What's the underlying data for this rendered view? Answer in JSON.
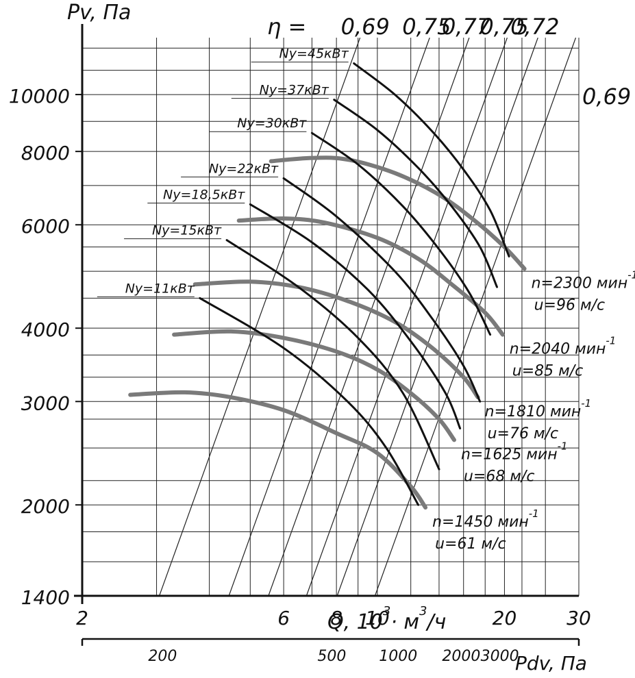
{
  "chart_data": {
    "type": "line",
    "y_axis": {
      "label": "Pv, Па",
      "scale": "log",
      "range": [
        1400,
        12500
      ],
      "ticks": [
        1400,
        2000,
        3000,
        4000,
        6000,
        8000,
        10000
      ],
      "grid": [
        1400,
        1600,
        1800,
        2000,
        2200,
        2500,
        2800,
        3000,
        3300,
        3600,
        4000,
        4500,
        5000,
        5500,
        6000,
        7000,
        8000,
        9000,
        10000,
        11000,
        12000
      ]
    },
    "x_axis": {
      "label_q": "Q, 10",
      "label_exp": "3",
      "label_mid": "· м",
      "label_exp2": "3",
      "label_end": "/ч",
      "scale": "log",
      "range": [
        2,
        30
      ],
      "ticks": [
        2,
        6,
        8,
        10,
        20,
        30
      ],
      "grid": [
        2,
        3,
        4,
        5,
        6,
        7,
        8,
        9,
        10,
        12,
        14,
        16,
        18,
        20,
        22,
        25,
        30
      ]
    },
    "pdv_axis": {
      "label": "Pdv, Па",
      "ticks": [
        200,
        500,
        1000,
        2000,
        3000
      ],
      "tick_q": [
        3.1,
        7.8,
        11.2,
        15.8,
        19.5
      ]
    },
    "eta_label": "η =",
    "efficiency_lines": [
      {
        "label": "0,69",
        "q_top": 9.1
      },
      {
        "label": "0,75",
        "q_top": 13.3
      },
      {
        "label": "0,77",
        "q_top": 16.5
      },
      {
        "label": "0,75",
        "q_top": 20.3
      },
      {
        "label": "0,72",
        "q_top": 24.0
      },
      {
        "label": "0,69",
        "q_top": 29.5
      }
    ],
    "speed_curves": [
      {
        "name": "n=1450 мин",
        "sup": "-1",
        "u": "u=61 м/с",
        "points": [
          [
            2.6,
            3080
          ],
          [
            3.5,
            3110
          ],
          [
            4.5,
            3050
          ],
          [
            6,
            2900
          ],
          [
            8,
            2650
          ],
          [
            10,
            2450
          ],
          [
            12,
            2150
          ],
          [
            13,
            1980
          ]
        ]
      },
      {
        "name": "n=1625 мин",
        "sup": "-1",
        "u": "u=68 м/с",
        "points": [
          [
            3.3,
            3900
          ],
          [
            4.5,
            3950
          ],
          [
            6,
            3850
          ],
          [
            8,
            3650
          ],
          [
            10,
            3400
          ],
          [
            12,
            3100
          ],
          [
            14,
            2800
          ],
          [
            15.2,
            2580
          ]
        ]
      },
      {
        "name": "n=1810 мин",
        "sup": "-1",
        "u": "u=76 м/с",
        "points": [
          [
            3.7,
            4750
          ],
          [
            5,
            4800
          ],
          [
            6.5,
            4700
          ],
          [
            8.5,
            4450
          ],
          [
            11,
            4100
          ],
          [
            13.5,
            3700
          ],
          [
            16,
            3300
          ],
          [
            17.3,
            3050
          ]
        ]
      },
      {
        "name": "n=2040 мин",
        "sup": "-1",
        "u": "u=85 м/с",
        "points": [
          [
            4.7,
            6100
          ],
          [
            6,
            6150
          ],
          [
            7.5,
            6050
          ],
          [
            10,
            5700
          ],
          [
            12.5,
            5250
          ],
          [
            15,
            4750
          ],
          [
            18,
            4250
          ],
          [
            19.8,
            3900
          ]
        ]
      },
      {
        "name": "n=2300 мин",
        "sup": "-1",
        "u": "u=96 м/с",
        "points": [
          [
            5.6,
            7700
          ],
          [
            7,
            7800
          ],
          [
            8.5,
            7750
          ],
          [
            11,
            7350
          ],
          [
            14,
            6750
          ],
          [
            17,
            6100
          ],
          [
            20,
            5500
          ],
          [
            22.3,
            5050
          ]
        ]
      }
    ],
    "power_curves": [
      {
        "name": "Ny=11кВт",
        "points": [
          [
            3.8,
            4500
          ],
          [
            6,
            3700
          ],
          [
            8.5,
            3000
          ],
          [
            10.5,
            2500
          ],
          [
            12.5,
            2000
          ]
        ]
      },
      {
        "name": "Ny=15кВт",
        "points": [
          [
            4.4,
            5650
          ],
          [
            6.5,
            4700
          ],
          [
            9,
            3850
          ],
          [
            11.5,
            3100
          ],
          [
            14,
            2300
          ]
        ]
      },
      {
        "name": "Ny=18,5кВт",
        "points": [
          [
            5,
            6500
          ],
          [
            7,
            5600
          ],
          [
            9.5,
            4650
          ],
          [
            12,
            3800
          ],
          [
            14.5,
            3100
          ],
          [
            15.7,
            2700
          ]
        ]
      },
      {
        "name": "Ny=22кВт",
        "points": [
          [
            6,
            7200
          ],
          [
            8,
            6200
          ],
          [
            11,
            5000
          ],
          [
            13.5,
            4150
          ],
          [
            16,
            3450
          ],
          [
            17.5,
            3000
          ]
        ]
      },
      {
        "name": "Ny=30кВт",
        "points": [
          [
            7,
            8600
          ],
          [
            9,
            7600
          ],
          [
            11.5,
            6450
          ],
          [
            14,
            5450
          ],
          [
            16.5,
            4600
          ],
          [
            18.5,
            3900
          ]
        ]
      },
      {
        "name": "Ny=37кВт",
        "points": [
          [
            7.9,
            9800
          ],
          [
            10,
            8700
          ],
          [
            12.5,
            7500
          ],
          [
            15,
            6450
          ],
          [
            17.5,
            5500
          ],
          [
            19.2,
            4700
          ]
        ]
      },
      {
        "name": "Ny=45кВт",
        "points": [
          [
            8.8,
            11300
          ],
          [
            11,
            10000
          ],
          [
            13.5,
            8650
          ],
          [
            16,
            7450
          ],
          [
            18.5,
            6350
          ],
          [
            20.5,
            5300
          ]
        ]
      }
    ],
    "power_label_anchor": [
      [
        3.8,
        4500
      ],
      [
        4.4,
        5650
      ],
      [
        5,
        6500
      ],
      [
        6,
        7200
      ],
      [
        7,
        8600
      ],
      [
        7.9,
        9800
      ],
      [
        8.8,
        11300
      ]
    ]
  }
}
